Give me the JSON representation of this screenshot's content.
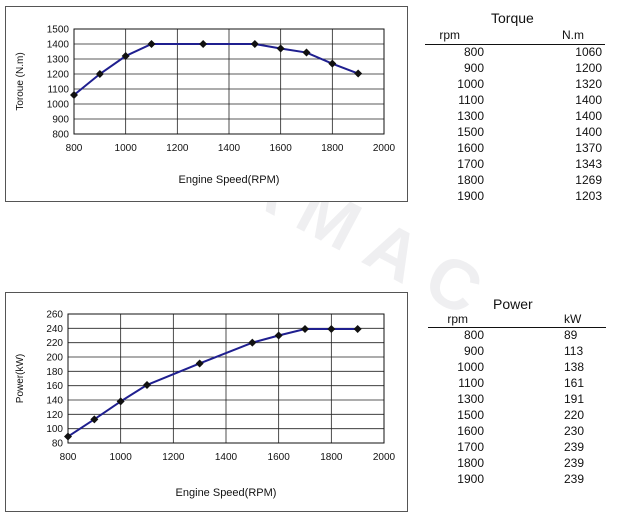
{
  "colors": {
    "line": "#1f1f8f",
    "marker": "#111111",
    "grid": "#222222"
  },
  "torque_table": {
    "title": "Torque",
    "col1": "rpm",
    "col2": "N.m",
    "rows": [
      {
        "rpm": "800",
        "val": "1060"
      },
      {
        "rpm": "900",
        "val": "1200"
      },
      {
        "rpm": "1000",
        "val": "1320"
      },
      {
        "rpm": "1100",
        "val": "1400"
      },
      {
        "rpm": "1300",
        "val": "1400"
      },
      {
        "rpm": "1500",
        "val": "1400"
      },
      {
        "rpm": "1600",
        "val": "1370"
      },
      {
        "rpm": "1700",
        "val": "1343"
      },
      {
        "rpm": "1800",
        "val": "1269"
      },
      {
        "rpm": "1900",
        "val": "1203"
      }
    ]
  },
  "power_table": {
    "title": "Power",
    "col1": "rpm",
    "col2": "kW",
    "rows": [
      {
        "rpm": "800",
        "val": "89"
      },
      {
        "rpm": "900",
        "val": "113"
      },
      {
        "rpm": "1000",
        "val": "138"
      },
      {
        "rpm": "1100",
        "val": "161"
      },
      {
        "rpm": "1300",
        "val": "191"
      },
      {
        "rpm": "1500",
        "val": "220"
      },
      {
        "rpm": "1600",
        "val": "230"
      },
      {
        "rpm": "1700",
        "val": "239"
      },
      {
        "rpm": "1800",
        "val": "239"
      },
      {
        "rpm": "1900",
        "val": "239"
      }
    ]
  },
  "chart_data": [
    {
      "type": "line",
      "xlabel": "Engine Speed(RPM)",
      "ylabel": "Toroue (N.m)",
      "xlim": [
        800,
        2000
      ],
      "ylim": [
        800,
        1500
      ],
      "xticks": [
        "800",
        "1000",
        "1200",
        "1400",
        "1600",
        "1800",
        "2000"
      ],
      "yticks": [
        "800",
        "900",
        "1000",
        "1100",
        "1200",
        "1300",
        "1400",
        "1500"
      ],
      "grid": true,
      "x": [
        800,
        900,
        1000,
        1100,
        1300,
        1500,
        1600,
        1700,
        1800,
        1900
      ],
      "y": [
        1060,
        1200,
        1320,
        1400,
        1400,
        1400,
        1370,
        1343,
        1269,
        1203
      ]
    },
    {
      "type": "line",
      "xlabel": "Engine Speed(RPM)",
      "ylabel": "Power(kW)",
      "xlim": [
        800,
        2000
      ],
      "ylim": [
        80,
        260
      ],
      "xticks": [
        "800",
        "1000",
        "1200",
        "1400",
        "1600",
        "1800",
        "2000"
      ],
      "yticks": [
        "80",
        "100",
        "120",
        "140",
        "160",
        "180",
        "200",
        "220",
        "240",
        "260"
      ],
      "grid": true,
      "x": [
        800,
        900,
        1000,
        1100,
        1300,
        1500,
        1600,
        1700,
        1800,
        1900
      ],
      "y": [
        89,
        113,
        138,
        161,
        191,
        220,
        230,
        239,
        239,
        239
      ]
    }
  ],
  "watermark": "DURAMAC"
}
